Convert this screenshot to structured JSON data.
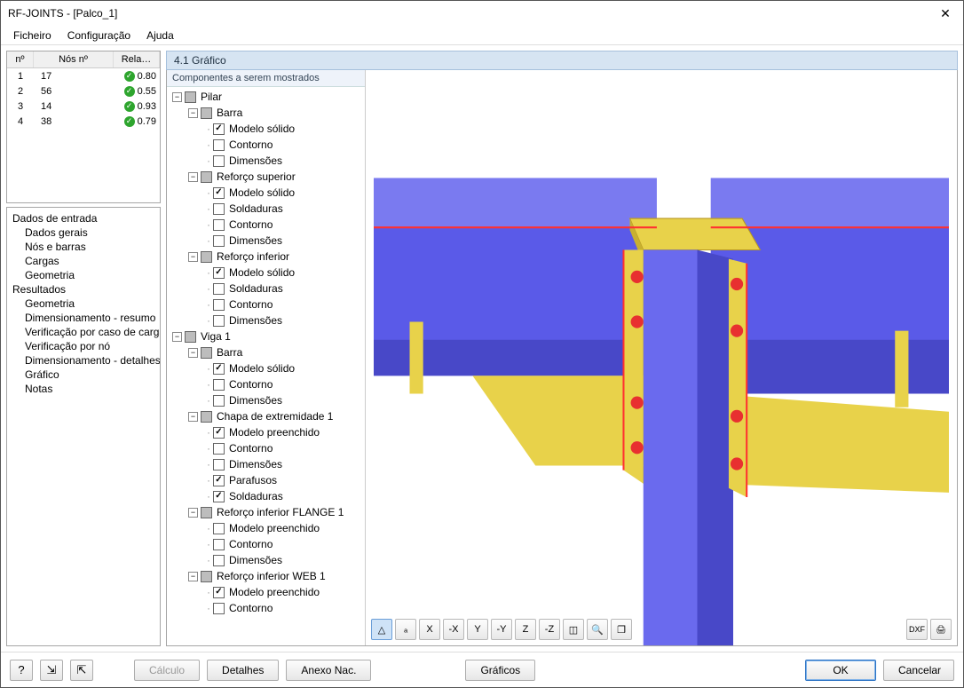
{
  "window": {
    "title": "RF-JOINTS - [Palco_1]"
  },
  "menu": {
    "items": [
      "Ficheiro",
      "Configuração",
      "Ajuda"
    ]
  },
  "grid": {
    "headers": [
      "nº",
      "Nós nº",
      "Rela…"
    ],
    "rows": [
      {
        "n": "1",
        "node": "17",
        "ratio": "0.80"
      },
      {
        "n": "2",
        "node": "56",
        "ratio": "0.55"
      },
      {
        "n": "3",
        "node": "14",
        "ratio": "0.93"
      },
      {
        "n": "4",
        "node": "38",
        "ratio": "0.79"
      }
    ]
  },
  "nav": {
    "group_input": "Dados de entrada",
    "input_items": [
      "Dados gerais",
      "Nós e barras",
      "Cargas",
      "Geometria"
    ],
    "group_results": "Resultados",
    "result_items": [
      "Geometria",
      "Dimensionamento - resumo",
      "Verificação por caso de carga",
      "Verificação por nó",
      "Dimensionamento - detalhes",
      "Gráfico",
      "Notas"
    ]
  },
  "panel": {
    "title": "4.1 Gráfico",
    "comp_header": "Componentes a serem mostrados"
  },
  "tree": [
    {
      "d": 0,
      "exp": "-",
      "cb": "partial",
      "label": "Pilar"
    },
    {
      "d": 1,
      "exp": "-",
      "cb": "partial",
      "label": "Barra"
    },
    {
      "d": 2,
      "exp": "",
      "cb": "checked",
      "label": "Modelo sólido"
    },
    {
      "d": 2,
      "exp": "",
      "cb": "off",
      "label": "Contorno"
    },
    {
      "d": 2,
      "exp": "",
      "cb": "off",
      "label": "Dimensões"
    },
    {
      "d": 1,
      "exp": "-",
      "cb": "partial",
      "label": "Reforço superior"
    },
    {
      "d": 2,
      "exp": "",
      "cb": "checked",
      "label": "Modelo sólido"
    },
    {
      "d": 2,
      "exp": "",
      "cb": "off",
      "label": "Soldaduras"
    },
    {
      "d": 2,
      "exp": "",
      "cb": "off",
      "label": "Contorno"
    },
    {
      "d": 2,
      "exp": "",
      "cb": "off",
      "label": "Dimensões"
    },
    {
      "d": 1,
      "exp": "-",
      "cb": "partial",
      "label": "Reforço inferior"
    },
    {
      "d": 2,
      "exp": "",
      "cb": "checked",
      "label": "Modelo sólido"
    },
    {
      "d": 2,
      "exp": "",
      "cb": "off",
      "label": "Soldaduras"
    },
    {
      "d": 2,
      "exp": "",
      "cb": "off",
      "label": "Contorno"
    },
    {
      "d": 2,
      "exp": "",
      "cb": "off",
      "label": "Dimensões"
    },
    {
      "d": 0,
      "exp": "-",
      "cb": "partial",
      "label": "Viga 1"
    },
    {
      "d": 1,
      "exp": "-",
      "cb": "partial",
      "label": "Barra"
    },
    {
      "d": 2,
      "exp": "",
      "cb": "checked",
      "label": "Modelo sólido"
    },
    {
      "d": 2,
      "exp": "",
      "cb": "off",
      "label": "Contorno"
    },
    {
      "d": 2,
      "exp": "",
      "cb": "off",
      "label": "Dimensões"
    },
    {
      "d": 1,
      "exp": "-",
      "cb": "partial",
      "label": "Chapa de extremidade 1"
    },
    {
      "d": 2,
      "exp": "",
      "cb": "checked",
      "label": "Modelo preenchido"
    },
    {
      "d": 2,
      "exp": "",
      "cb": "off",
      "label": "Contorno"
    },
    {
      "d": 2,
      "exp": "",
      "cb": "off",
      "label": "Dimensões"
    },
    {
      "d": 2,
      "exp": "",
      "cb": "checked",
      "label": "Parafusos"
    },
    {
      "d": 2,
      "exp": "",
      "cb": "checked",
      "label": "Soldaduras"
    },
    {
      "d": 1,
      "exp": "-",
      "cb": "partial",
      "label": "Reforço inferior FLANGE 1"
    },
    {
      "d": 2,
      "exp": "",
      "cb": "off",
      "label": "Modelo preenchido"
    },
    {
      "d": 2,
      "exp": "",
      "cb": "off",
      "label": "Contorno"
    },
    {
      "d": 2,
      "exp": "",
      "cb": "off",
      "label": "Dimensões"
    },
    {
      "d": 1,
      "exp": "-",
      "cb": "partial",
      "label": "Reforço inferior WEB 1"
    },
    {
      "d": 2,
      "exp": "",
      "cb": "checked",
      "label": "Modelo preenchido"
    },
    {
      "d": 2,
      "exp": "",
      "cb": "off",
      "label": "Contorno"
    }
  ],
  "toolbar": {
    "left_icons": [
      "axis-icon",
      "label-icon",
      "view-x-icon",
      "view-nx-icon",
      "view-y-icon",
      "view-ny-icon",
      "view-z-icon",
      "view-nz-icon",
      "view-iso-icon",
      "zoom-icon",
      "layers-icon"
    ],
    "right_icons": [
      "dxf-icon",
      "print-icon"
    ],
    "left_glyphs": [
      "△",
      "ₐ",
      "X",
      "-X",
      "Y",
      "-Y",
      "Z",
      "-Z",
      "◫",
      "🔍",
      "❐"
    ],
    "right_glyphs": [
      "DXF",
      "🖨"
    ]
  },
  "bottom": {
    "calc": "Cálculo",
    "details": "Detalhes",
    "annex": "Anexo Nac.",
    "graphics": "Gráficos",
    "ok": "OK",
    "cancel": "Cancelar"
  },
  "render": {
    "colors": {
      "beam_face": "#5a5ae8",
      "beam_shade": "#4848c8",
      "beam_top_light": "#7a7af0",
      "plate": "#e8d24a",
      "plate_shade": "#c8b030",
      "bolt": "#e83030",
      "weld": "#ff3030",
      "col_face": "#6a6aee"
    }
  }
}
